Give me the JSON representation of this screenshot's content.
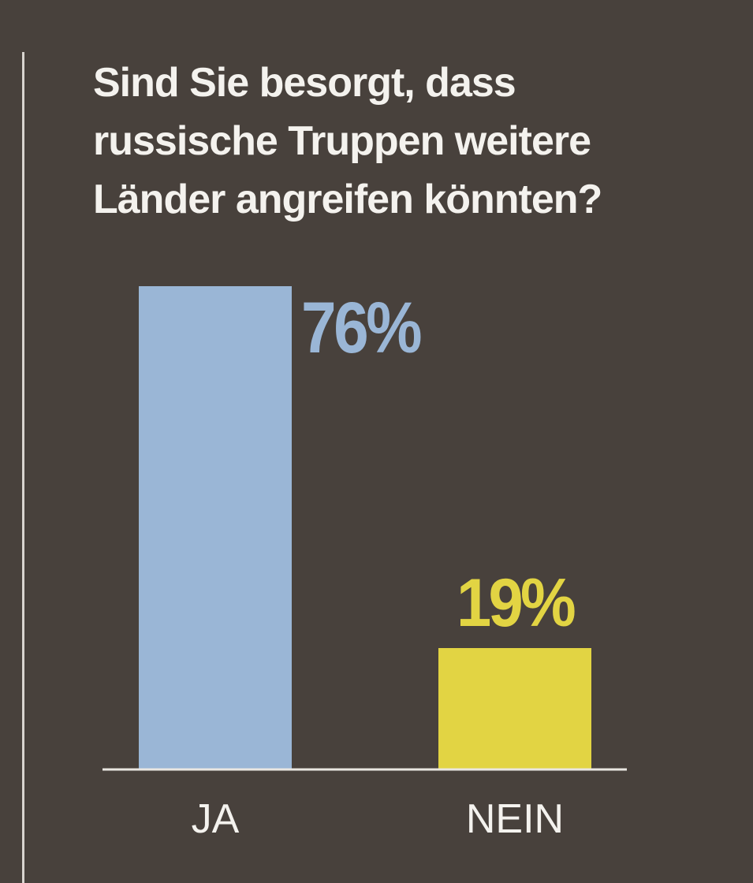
{
  "background_color": "#48413c",
  "chart_data": {
    "type": "bar",
    "title_lines": [
      "Sind Sie besorgt, dass",
      "russische Truppen weitere",
      "Länder angreifen könnten?"
    ],
    "categories": [
      "JA",
      "NEIN"
    ],
    "values": [
      76,
      19
    ],
    "value_labels": [
      "76%",
      "19%"
    ],
    "colors": [
      "#9ab6d6",
      "#e2d443"
    ],
    "unit": "%",
    "ylim": [
      0,
      76
    ],
    "grid": false,
    "legend": "none"
  }
}
